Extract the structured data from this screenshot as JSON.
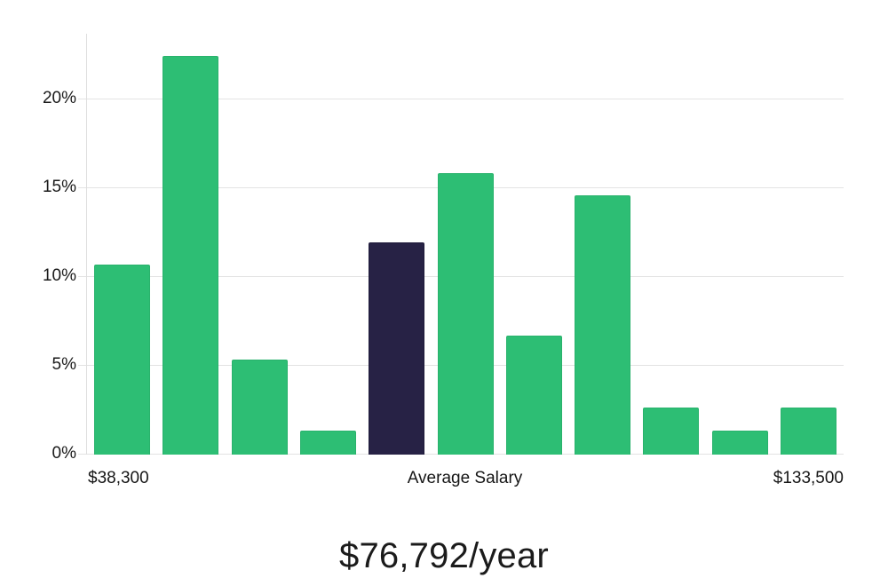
{
  "summary": {
    "average_salary_text": "$76,792/year"
  },
  "colors": {
    "bar_fill": "#2dbe74",
    "bar_border": "#29b26c",
    "highlight_fill": "#272245",
    "highlight_border": "#1e1a3a",
    "grid_line": "#e3e3e3",
    "axis_line": "#dedede",
    "label_text": "#1a1a1a",
    "caption_text": "#1b1b1b"
  },
  "chart_data": {
    "type": "bar",
    "subtype": "salary-distribution-histogram",
    "values_pct": [
      10.7,
      22.45,
      5.35,
      1.35,
      11.95,
      15.85,
      6.7,
      14.6,
      2.65,
      1.35,
      2.65
    ],
    "highlight_index": 4,
    "highlight_meaning": "Average Salary",
    "y_ticks": [
      {
        "pct": 0,
        "label": "0%"
      },
      {
        "pct": 5,
        "label": "5%"
      },
      {
        "pct": 10,
        "label": "10%"
      },
      {
        "pct": 15,
        "label": "15%"
      },
      {
        "pct": 20,
        "label": "20%"
      }
    ],
    "ylim": [
      0,
      23.7
    ],
    "x_axis_labels": [
      {
        "text": "$38,300",
        "align": "left"
      },
      {
        "text": "Average Salary",
        "align": "center"
      },
      {
        "text": "$133,500",
        "align": "right"
      }
    ],
    "grid": true,
    "legend": false,
    "caption": "$76,792/year"
  }
}
